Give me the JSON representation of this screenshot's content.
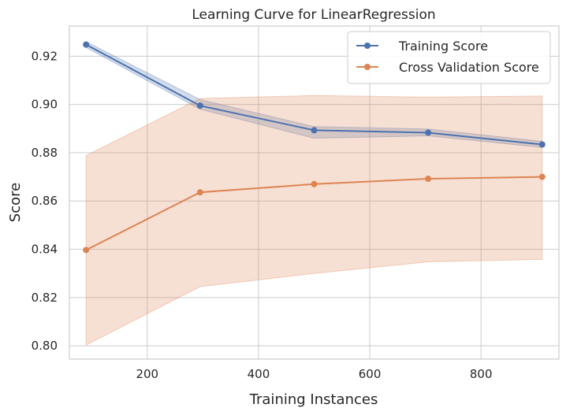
{
  "chart_data": {
    "type": "line",
    "title": "Learning Curve for LinearRegression",
    "xlabel": "Training Instances",
    "ylabel": "Score",
    "xlim": [
      60,
      940
    ],
    "ylim": [
      0.7945,
      0.9325
    ],
    "xticks": [
      200,
      400,
      600,
      800
    ],
    "xtick_labels": [
      "200",
      "400",
      "600",
      "800"
    ],
    "yticks": [
      0.8,
      0.82,
      0.84,
      0.86,
      0.88,
      0.9,
      0.92
    ],
    "ytick_labels": [
      "0.80",
      "0.82",
      "0.84",
      "0.86",
      "0.88",
      "0.90",
      "0.92"
    ],
    "grid": true,
    "legend_position": "top-right",
    "x": [
      90,
      295,
      500,
      705,
      910
    ],
    "series": [
      {
        "name": "Training Score",
        "color": "#4c72b0",
        "values": [
          0.9248,
          0.8995,
          0.8893,
          0.8883,
          0.8834
        ],
        "band_lower": [
          0.9236,
          0.898,
          0.886,
          0.887,
          0.8822
        ],
        "band_upper": [
          0.926,
          0.902,
          0.8908,
          0.8898,
          0.8847
        ]
      },
      {
        "name": "Cross Validation Score",
        "color": "#dd8452",
        "values": [
          0.8397,
          0.8636,
          0.867,
          0.8692,
          0.87
        ],
        "band_lower": [
          0.8003,
          0.8245,
          0.83,
          0.8348,
          0.8358
        ],
        "band_upper": [
          0.8788,
          0.9025,
          0.9037,
          0.903,
          0.9035
        ]
      }
    ]
  }
}
